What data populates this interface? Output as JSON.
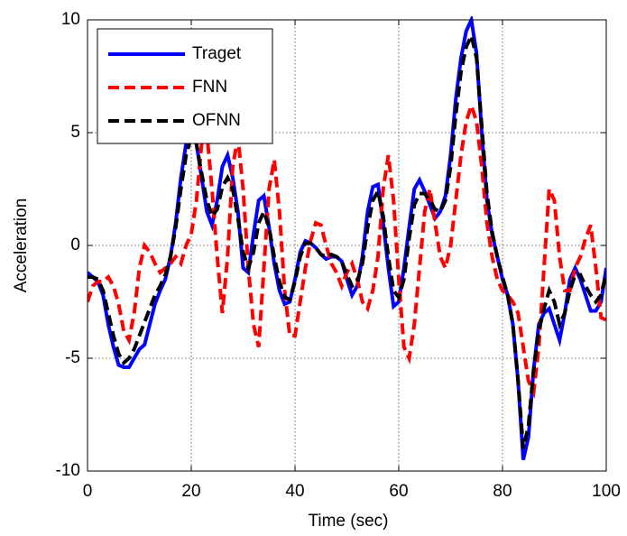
{
  "chart_data": {
    "type": "line",
    "xlabel": "Time (sec)",
    "ylabel": "Acceleration",
    "x": [
      0,
      1,
      2,
      3,
      4,
      5,
      6,
      7,
      8,
      9,
      10,
      11,
      12,
      13,
      14,
      15,
      16,
      17,
      18,
      19,
      20,
      21,
      22,
      23,
      24,
      25,
      26,
      27,
      28,
      29,
      30,
      31,
      32,
      33,
      34,
      35,
      36,
      37,
      38,
      39,
      40,
      41,
      42,
      43,
      44,
      45,
      46,
      47,
      48,
      49,
      50,
      51,
      52,
      53,
      54,
      55,
      56,
      57,
      58,
      59,
      60,
      61,
      62,
      63,
      64,
      65,
      66,
      67,
      68,
      69,
      70,
      71,
      72,
      73,
      74,
      75,
      76,
      77,
      78,
      79,
      80,
      81,
      82,
      83,
      84,
      85,
      86,
      87,
      88,
      89,
      90,
      91,
      92,
      93,
      94,
      95,
      96,
      97,
      98,
      99,
      100
    ],
    "series": [
      {
        "name": "Traget",
        "color": "#0000ff",
        "style": "solid",
        "values": [
          -1.2,
          -1.4,
          -1.6,
          -2.2,
          -3.5,
          -4.5,
          -5.3,
          -5.4,
          -5.4,
          -5.0,
          -4.6,
          -4.4,
          -3.5,
          -2.6,
          -2.0,
          -1.5,
          -0.5,
          1.0,
          3.0,
          4.5,
          5.2,
          4.5,
          3.0,
          1.5,
          0.9,
          2.0,
          3.5,
          4.0,
          3.0,
          1.5,
          -1.0,
          -1.2,
          0.5,
          2.0,
          2.2,
          0.8,
          -0.8,
          -2.0,
          -2.6,
          -2.5,
          -1.5,
          -0.3,
          0.2,
          0.1,
          -0.1,
          -0.4,
          -0.6,
          -0.5,
          -0.5,
          -0.7,
          -1.5,
          -2.2,
          -1.8,
          -0.5,
          1.5,
          2.6,
          2.7,
          1.0,
          -1.0,
          -2.7,
          -2.5,
          -1.0,
          0.8,
          2.5,
          2.9,
          2.4,
          1.8,
          1.2,
          1.5,
          2.2,
          4.0,
          6.5,
          8.3,
          9.5,
          10.0,
          8.5,
          5.0,
          2.0,
          0.5,
          -0.5,
          -1.5,
          -2.2,
          -3.5,
          -6.0,
          -9.5,
          -8.5,
          -5.5,
          -3.5,
          -3.0,
          -2.8,
          -3.5,
          -4.2,
          -3.0,
          -1.5,
          -1.0,
          -1.5,
          -2.2,
          -2.9,
          -2.9,
          -2.5,
          -1.0
        ]
      },
      {
        "name": "FNN",
        "color": "#ff0000",
        "style": "dashed",
        "values": [
          -2.5,
          -1.8,
          -1.6,
          -1.6,
          -1.4,
          -1.8,
          -2.6,
          -3.8,
          -4.2,
          -3.0,
          -1.0,
          0.0,
          -0.3,
          -0.8,
          -1.2,
          -1.0,
          -0.8,
          -0.5,
          -0.8,
          0.0,
          0.5,
          2.0,
          4.5,
          5.0,
          2.5,
          -0.5,
          -3.0,
          -0.5,
          3.5,
          4.8,
          2.5,
          -1.0,
          -3.5,
          -4.5,
          -1.0,
          2.5,
          3.8,
          1.5,
          -2.0,
          -4.0,
          -4.0,
          -2.5,
          -1.0,
          0.2,
          1.0,
          0.9,
          0.0,
          -0.8,
          -1.2,
          -1.8,
          -1.2,
          -0.8,
          -1.5,
          -2.5,
          -2.8,
          -2.0,
          -0.5,
          2.5,
          4.0,
          2.0,
          -1.5,
          -4.5,
          -5.0,
          -3.5,
          -1.0,
          1.5,
          2.5,
          1.0,
          -0.5,
          -1.0,
          0.0,
          2.0,
          4.0,
          5.5,
          6.2,
          5.5,
          3.5,
          1.0,
          -0.5,
          -1.5,
          -2.0,
          -2.2,
          -2.5,
          -3.0,
          -4.5,
          -6.0,
          -6.5,
          -4.5,
          -1.0,
          2.5,
          2.0,
          -0.5,
          -2.0,
          -2.0,
          -1.0,
          -0.5,
          0.3,
          0.9,
          -1.0,
          -3.2,
          -3.3
        ]
      },
      {
        "name": "OFNN",
        "color": "#000000",
        "style": "dashed",
        "values": [
          -1.4,
          -1.4,
          -1.5,
          -2.0,
          -3.0,
          -4.0,
          -4.8,
          -5.2,
          -5.0,
          -4.6,
          -4.0,
          -3.4,
          -2.8,
          -2.2,
          -1.8,
          -1.3,
          -0.5,
          0.8,
          2.5,
          4.0,
          4.8,
          4.5,
          3.2,
          2.0,
          1.3,
          1.6,
          2.6,
          3.0,
          2.5,
          1.2,
          -0.3,
          -1.0,
          -0.3,
          1.0,
          1.5,
          0.8,
          -0.5,
          -1.6,
          -2.3,
          -2.4,
          -1.6,
          -0.5,
          0.1,
          0.1,
          -0.1,
          -0.4,
          -0.5,
          -0.4,
          -0.5,
          -0.7,
          -1.3,
          -1.8,
          -1.6,
          -0.8,
          0.8,
          2.0,
          2.4,
          1.3,
          -0.5,
          -2.0,
          -2.3,
          -1.5,
          0.3,
          1.8,
          2.3,
          2.3,
          2.0,
          1.6,
          1.5,
          2.0,
          3.5,
          5.8,
          7.7,
          8.8,
          9.3,
          8.3,
          5.3,
          2.3,
          0.6,
          -0.5,
          -1.4,
          -2.2,
          -3.5,
          -6.0,
          -9.0,
          -8.0,
          -5.5,
          -3.8,
          -2.8,
          -2.0,
          -2.5,
          -3.5,
          -3.0,
          -2.0,
          -1.3,
          -1.3,
          -1.8,
          -2.2,
          -2.5,
          -2.2,
          -1.2
        ]
      }
    ],
    "xlim": [
      0,
      100
    ],
    "xticks": [
      0,
      20,
      40,
      60,
      80,
      100
    ],
    "ylim": [
      -10,
      10
    ],
    "yticks": [
      -10,
      -5,
      0,
      5,
      10
    ],
    "grid": true,
    "legend": "upper left"
  }
}
